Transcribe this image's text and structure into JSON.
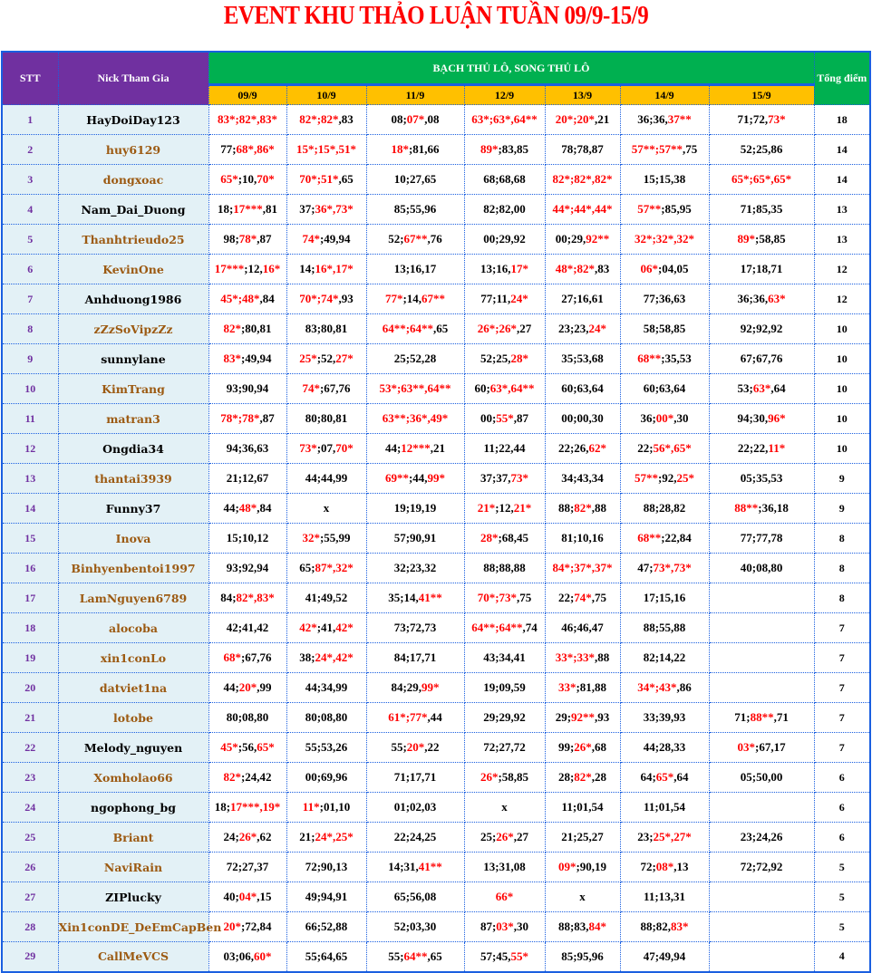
{
  "title": "EVENT KHU THẢO LUẬN TUẦN 09/9-15/9",
  "header": {
    "stt": "STT",
    "nick": "Nick Tham Gia",
    "group": "BẠCH THỦ LÔ, SONG THỦ LÔ",
    "total": "Tổng điểm",
    "dates": [
      "09/9",
      "10/9",
      "11/9",
      "12/9",
      "13/9",
      "14/9",
      "15/9"
    ]
  },
  "colors": {
    "hit": "#ff0000",
    "nick_brown": "#9c5a12",
    "nick_black": "#000000",
    "header_purple": "#7030a0",
    "header_green": "#00b050",
    "header_yellow": "#ffc000"
  },
  "rows": [
    {
      "stt": "1",
      "nick": "HayDoiDay123",
      "nick_color": "black",
      "cells": [
        "83*;82*,83*",
        "82*;82*,83",
        "08;07*,08",
        "63*;63*,64**",
        "20*;20*,21",
        "36;36,37**",
        "71;72,73*"
      ],
      "total": "18"
    },
    {
      "stt": "2",
      "nick": "huy6129",
      "nick_color": "brown",
      "cells": [
        "77;68*,86*",
        "15*;15*,51*",
        "18*;81,66",
        "89*;83,85",
        "78;78,87",
        "57**;57**,75",
        "52;25,86"
      ],
      "total": "14"
    },
    {
      "stt": "3",
      "nick": "dongxoac",
      "nick_color": "brown",
      "cells": [
        "65*;10,70*",
        "70*;51*,65",
        "10;27,65",
        "68;68,68",
        "82*;82*,82*",
        "15;15,38",
        "65*;65*,65*"
      ],
      "total": "14"
    },
    {
      "stt": "4",
      "nick": "Nam_Dai_Duong",
      "nick_color": "black",
      "cells": [
        "18;17***,81",
        "37;36*,73*",
        "85;55,96",
        "82;82,00",
        "44*;44*,44*",
        "57**;85,95",
        "71;85,35"
      ],
      "total": "13"
    },
    {
      "stt": "5",
      "nick": "Thanhtrieudo25",
      "nick_color": "brown",
      "cells": [
        "98;78*,87",
        "74*;49,94",
        "52;67**,76",
        "00;29,92",
        "00;29,92**",
        "32*;32*,32*",
        "89*;58,85"
      ],
      "total": "13"
    },
    {
      "stt": "6",
      "nick": "KevinOne",
      "nick_color": "brown",
      "cells": [
        "17***;12,16*",
        "14;16*,17*",
        "13;16,17",
        "13;16,17*",
        "48*;82*,83",
        "06*;04,05",
        "17;18,71"
      ],
      "total": "12"
    },
    {
      "stt": "7",
      "nick": "Anhduong1986",
      "nick_color": "black",
      "cells": [
        "45*;48*,84",
        "70*;74*,93",
        "77*;14,67**",
        "77;11,24*",
        "27;16,61",
        "77;36,63",
        "36;36,63*"
      ],
      "total": "12"
    },
    {
      "stt": "8",
      "nick": "zZzSoVipzZz",
      "nick_color": "brown",
      "cells": [
        "82*;80,81",
        "83;80,81",
        "64**;64**,65",
        "26*;26*,27",
        "23;23,24*",
        "58;58,85",
        "92;92,92"
      ],
      "total": "10"
    },
    {
      "stt": "9",
      "nick": "sunnylane",
      "nick_color": "black",
      "cells": [
        "83*;49,94",
        "25*;52,27*",
        "25;52,28",
        "52;25,28*",
        "35;53,68",
        "68**;35,53",
        "67;67,76"
      ],
      "total": "10"
    },
    {
      "stt": "10",
      "nick": "KimTrang",
      "nick_color": "brown",
      "cells": [
        "93;90,94",
        "74*;67,76",
        "53*;63**,64**",
        "60;63*,64**",
        "60;63,64",
        "60;63,64",
        "53;63*,64"
      ],
      "total": "10"
    },
    {
      "stt": "11",
      "nick": "matran3",
      "nick_color": "brown",
      "cells": [
        "78*;78*,87",
        "80;80,81",
        "63**;36*,49*",
        "00;55*,87",
        "00;00,30",
        "36;00*,30",
        "94;30,96*"
      ],
      "total": "10"
    },
    {
      "stt": "12",
      "nick": "Ongdia34",
      "nick_color": "black",
      "cells": [
        "94;36,63",
        "73*;07,70*",
        "44;12***,21",
        "11;22,44",
        "22;26,62*",
        "22;56*,65*",
        "22;22,11*"
      ],
      "total": "10"
    },
    {
      "stt": "13",
      "nick": "thantai3939",
      "nick_color": "brown",
      "cells": [
        "21;12,67",
        "44;44,99",
        "69**;44,99*",
        "37;37,73*",
        "34;43,34",
        "57**;92,25*",
        "05;35,53"
      ],
      "total": "9"
    },
    {
      "stt": "14",
      "nick": "Funny37",
      "nick_color": "black",
      "cells": [
        "44;48*,84",
        "x",
        "19;19,19",
        "21*;12,21*",
        "88;82*,88",
        "88;28,82",
        "88**;36,18"
      ],
      "total": "9"
    },
    {
      "stt": "15",
      "nick": "Inova",
      "nick_color": "brown",
      "cells": [
        "15;10,12",
        "32*;55,99",
        "57;90,91",
        "28*;68,45",
        "81;10,16",
        "68**;22,84",
        "77;77,78"
      ],
      "total": "8"
    },
    {
      "stt": "16",
      "nick": "Binhyenbentoi1997",
      "nick_color": "brown",
      "cells": [
        "93;92,94",
        "65;87*,32*",
        "32;23,32",
        "88;88,88",
        "84*;37*,37*",
        "47;73*,73*",
        "40;08,80"
      ],
      "total": "8"
    },
    {
      "stt": "17",
      "nick": "LamNguyen6789",
      "nick_color": "brown",
      "cells": [
        "84;82*,83*",
        "41;49,52",
        "35;14,41**",
        "70*;73*,75",
        "22;74*,75",
        "17;15,16",
        ""
      ],
      "total": "8"
    },
    {
      "stt": "18",
      "nick": "alocoba",
      "nick_color": "brown",
      "cells": [
        "42;41,42",
        "42*;41,42*",
        "73;72,73",
        "64**;64**,74",
        "46;46,47",
        "88;55,88",
        ""
      ],
      "total": "7"
    },
    {
      "stt": "19",
      "nick": "xin1conLo",
      "nick_color": "brown",
      "cells": [
        "68*;67,76",
        "38;24*,42*",
        "84;17,71",
        "43;34,41",
        "33*;33*,88",
        "82;14,22",
        ""
      ],
      "total": "7"
    },
    {
      "stt": "20",
      "nick": "datviet1na",
      "nick_color": "brown",
      "cells": [
        "44;20*,99",
        "44;34,99",
        "84;29,99*",
        "19;09,59",
        "33*;81,88",
        "34*;43*,86",
        ""
      ],
      "total": "7"
    },
    {
      "stt": "21",
      "nick": "lotobe",
      "nick_color": "brown",
      "cells": [
        "80;08,80",
        "80;08,80",
        "61*;77*,44",
        "29;29,92",
        "29;92**,93",
        "33;39,93",
        "71;88**,71"
      ],
      "total": "7"
    },
    {
      "stt": "22",
      "nick": "Melody_nguyen",
      "nick_color": "black",
      "cells": [
        "45*;56,65*",
        "55;53,26",
        "55;20*,22",
        "72;27,72",
        "99;26*,68",
        "44;28,33",
        "03*;67,17"
      ],
      "total": "7"
    },
    {
      "stt": "23",
      "nick": "Xomholao66",
      "nick_color": "brown",
      "cells": [
        "82*;24,42",
        "00;69,96",
        "71;17,71",
        "26*;58,85",
        "28;82*,28",
        "64;65*,64",
        "05;50,00"
      ],
      "total": "6"
    },
    {
      "stt": "24",
      "nick": "ngophong_bg",
      "nick_color": "black",
      "cells": [
        "18;17***,19*",
        "11*;01,10",
        "01;02,03",
        "x",
        "11;01,54",
        "11;01,54",
        ""
      ],
      "total": "6"
    },
    {
      "stt": "25",
      "nick": "Briant",
      "nick_color": "brown",
      "cells": [
        "24;26*,62",
        "21;24*,25*",
        "22;24,25",
        "25;26*,27",
        "21;25,27",
        "23;25*,27*",
        "23;24,26"
      ],
      "total": "6"
    },
    {
      "stt": "26",
      "nick": "NaviRain",
      "nick_color": "brown",
      "cells": [
        "72;27,37",
        "72;90,13",
        "14;31,41**",
        "13;31,08",
        "09*;90,19",
        "72;08*,13",
        "72;72,92"
      ],
      "total": "5"
    },
    {
      "stt": "27",
      "nick": "ZIPlucky",
      "nick_color": "black",
      "cells": [
        "40;04*,15",
        "49;94,91",
        "65;56,08",
        "66*",
        "x",
        "11;13,31",
        ""
      ],
      "total": "5"
    },
    {
      "stt": "28",
      "nick": "Xin1conDE_DeEmCapBen",
      "nick_color": "brown",
      "cells": [
        "20*;72,84",
        "66;52,88",
        "52;03,30",
        "87;03*,30",
        "88;83,84*",
        "88;82,83*",
        ""
      ],
      "total": "5"
    },
    {
      "stt": "29",
      "nick": "CallMeVCS",
      "nick_color": "brown",
      "cells": [
        "03;06,60*",
        "55;64,65",
        "55;64**,65",
        "57;45,55*",
        "85;95,96",
        "47;49,94",
        ""
      ],
      "total": "4"
    }
  ]
}
